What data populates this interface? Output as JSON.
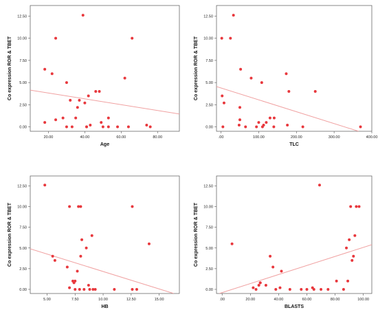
{
  "colors": {
    "point": "#e8383d",
    "fit_line": "#f0a0a0",
    "frame": "#555555"
  },
  "chart_data": [
    {
      "type": "scatter",
      "xlabel": "Age",
      "ylabel": "Co expression ROR & TBET",
      "xlim": [
        10,
        92
      ],
      "ylim": [
        -0.5,
        13.7
      ],
      "xticks": [
        "20.00",
        "40.00",
        "60.00",
        "80.00"
      ],
      "yticks": [
        "0.00",
        "2.50",
        "5.00",
        "7.50",
        "10.00",
        "12.50"
      ],
      "xtick_values": [
        20,
        40,
        60,
        80
      ],
      "ytick_values": [
        0,
        2.5,
        5,
        7.5,
        10,
        12.5
      ],
      "fit_line": {
        "x": [
          10,
          92
        ],
        "y": [
          4.15,
          1.45
        ]
      },
      "points": {
        "x": [
          18,
          18,
          22,
          24,
          24,
          28,
          30,
          30,
          32,
          33,
          35,
          36,
          37,
          39,
          40,
          41,
          41,
          42,
          43,
          46,
          48,
          49,
          50,
          53,
          53,
          58,
          62,
          64,
          66,
          74,
          76
        ],
        "y": [
          6.5,
          0.5,
          6.0,
          10.0,
          0.8,
          1.0,
          0.0,
          5.0,
          3.0,
          0.0,
          1.0,
          2.2,
          3.0,
          12.6,
          2.7,
          0.0,
          0.0,
          3.5,
          0.2,
          4.0,
          4.0,
          0.5,
          0.0,
          1.0,
          0.0,
          0.0,
          5.5,
          0.0,
          10.0,
          0.2,
          0.0
        ]
      }
    },
    {
      "type": "scatter",
      "xlabel": "TLC",
      "ylabel": "Co expression ROR & TBET",
      "xlim": [
        -12,
        400
      ],
      "ylim": [
        -0.5,
        13.7
      ],
      "xticks": [
        ".00",
        "100.00",
        "200.00",
        "300.00",
        "400.00"
      ],
      "yticks": [
        "0.00",
        "2.50",
        "5.00",
        "7.50",
        "10.00",
        "12.50"
      ],
      "xtick_values": [
        0,
        100,
        200,
        300,
        400
      ],
      "ytick_values": [
        0,
        2.5,
        5,
        7.5,
        10,
        12.5
      ],
      "fit_line": {
        "x": [
          -12,
          365
        ],
        "y": [
          4.55,
          -0.5
        ]
      },
      "points": {
        "x": [
          2,
          3,
          5,
          8,
          25,
          33,
          48,
          50,
          50,
          52,
          65,
          80,
          94,
          100,
          108,
          110,
          113,
          120,
          130,
          140,
          141,
          173,
          176,
          180,
          217,
          250,
          370
        ],
        "y": [
          10.0,
          3.5,
          0.0,
          2.7,
          10.0,
          12.6,
          0.2,
          2.2,
          0.8,
          6.5,
          0.0,
          5.5,
          0.0,
          0.5,
          5.0,
          0.0,
          0.2,
          0.5,
          1.0,
          0.0,
          1.0,
          6.0,
          0.2,
          4.0,
          0.0,
          4.0,
          0.0
        ]
      }
    },
    {
      "type": "scatter",
      "xlabel": "HB",
      "ylabel": "Co expression ROR & TBET",
      "xlim": [
        3.5,
        16.8
      ],
      "ylim": [
        -0.5,
        13.7
      ],
      "xticks": [
        "5.00",
        "7.50",
        "10.00",
        "12.50",
        "15.00"
      ],
      "yticks": [
        "0.00",
        "2.50",
        "5.00",
        "7.50",
        "10.00",
        "12.50"
      ],
      "xtick_values": [
        5,
        7.5,
        10,
        12.5,
        15
      ],
      "ytick_values": [
        0,
        2.5,
        5,
        7.5,
        10,
        12.5
      ],
      "fit_line": {
        "x": [
          3.5,
          16.3
        ],
        "y": [
          4.9,
          -0.5
        ]
      },
      "points": {
        "x": [
          4.8,
          5.5,
          5.7,
          6.8,
          7.0,
          7.0,
          7.3,
          7.4,
          7.5,
          7.5,
          7.7,
          7.8,
          7.9,
          8.0,
          8.0,
          8.1,
          8.3,
          8.5,
          8.7,
          8.8,
          9.0,
          9.1,
          9.3,
          11.0,
          12.6,
          12.6,
          13.0,
          14.1
        ],
        "y": [
          12.6,
          4.0,
          3.5,
          2.7,
          10.0,
          0.2,
          1.0,
          0.8,
          1.0,
          0.0,
          2.2,
          10.0,
          0.0,
          10.0,
          4.0,
          6.0,
          0.0,
          5.0,
          0.5,
          0.0,
          6.5,
          0.0,
          0.0,
          0.0,
          10.0,
          0.0,
          0.0,
          5.5
        ]
      }
    },
    {
      "type": "scatter",
      "xlabel": "BLASTS",
      "ylabel": "Co expression ROR & TBET",
      "xlim": [
        -4,
        106
      ],
      "ylim": [
        -0.5,
        13.7
      ],
      "xticks": [
        ".00",
        "20.00",
        "40.00",
        "60.00",
        "80.00",
        "100.00"
      ],
      "yticks": [
        "0.00",
        "2.50",
        "5.00",
        "7.50",
        "10.00",
        "12.50"
      ],
      "xtick_values": [
        0,
        20,
        40,
        60,
        80,
        100
      ],
      "ytick_values": [
        0,
        2.5,
        5,
        7.5,
        10,
        12.5
      ],
      "fit_line": {
        "x": [
          -2,
          106
        ],
        "y": [
          -0.5,
          5.4
        ]
      },
      "points": {
        "x": [
          7,
          22,
          24,
          26,
          27,
          27,
          31,
          34,
          36,
          38,
          41,
          42,
          48,
          56,
          60,
          64,
          65,
          69,
          70,
          75,
          81,
          86,
          88,
          89,
          90,
          91,
          92,
          93,
          94,
          95,
          97
        ],
        "y": [
          5.5,
          0.2,
          0.0,
          0.5,
          0.8,
          0.8,
          0.5,
          4.0,
          2.7,
          0.0,
          0.2,
          2.2,
          0.0,
          0.0,
          0.0,
          0.2,
          0.0,
          12.6,
          0.0,
          0.0,
          1.0,
          0.0,
          5.0,
          1.0,
          6.0,
          10.0,
          3.5,
          4.0,
          6.5,
          10.0,
          10.0
        ]
      }
    }
  ]
}
